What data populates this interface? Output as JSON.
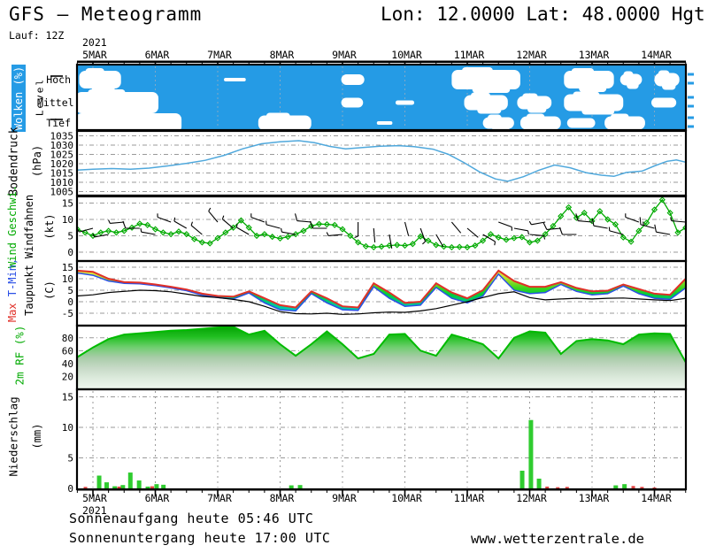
{
  "header": {
    "title": "GFS – Meteogramm",
    "coords": "Lon: 12.0000 Lat: 48.0000 Hgt: 5",
    "run": "Lauf: 12Z"
  },
  "x_axis": {
    "year": "2021",
    "day_labels": [
      "5MAR",
      "6MAR",
      "7MAR",
      "8MAR",
      "9MAR",
      "10MAR",
      "11MAR",
      "12MAR",
      "13MAR",
      "14MAR"
    ],
    "t_start": -0.28,
    "t_end": 9.5
  },
  "footer": {
    "sunrise": "Sonnenaufgang heute 05:46 UTC",
    "sunset": "Sonnenuntergang heute 17:00 UTC",
    "website": "www.wetterzentrale.de"
  },
  "colors": {
    "cloud_bg": "#259BE5",
    "cloud_white": "#FFFFFF",
    "pressure_line": "#4FA8DC",
    "wind_green": "#00AA00",
    "temp_max_red": "#E03028",
    "temp_min_blue": "#2B50E6",
    "dew_black": "#000000",
    "rh_green": "#00BB00",
    "precip_green": "#2FCC2F",
    "precip_red": "#E64545",
    "grid_gray": "#999999"
  },
  "chart_data": {
    "clouds": {
      "type": "heatmap",
      "label": "Wolken (%)",
      "level_label": "Level",
      "levels": [
        {
          "label": "Hoch",
          "segments": [
            [
              -0.22,
              0.45,
              20
            ],
            [
              2.1,
              2.45,
              4
            ],
            [
              3.98,
              4.35,
              12
            ],
            [
              5.75,
              6.85,
              22
            ],
            [
              7.55,
              8.35,
              20
            ],
            [
              8.45,
              8.8,
              13
            ],
            [
              9.0,
              9.4,
              15
            ]
          ]
        },
        {
          "label": "Mittel",
          "segments": [
            [
              -0.28,
              1.05,
              24
            ],
            [
              3.98,
              4.33,
              11
            ],
            [
              4.85,
              5.15,
              5
            ],
            [
              5.95,
              6.65,
              17
            ],
            [
              6.8,
              7.35,
              15
            ],
            [
              7.55,
              8.5,
              19
            ],
            [
              8.95,
              9.35,
              11
            ]
          ]
        },
        {
          "label": "Tief",
          "segments": [
            [
              -0.28,
              1.42,
              22
            ],
            [
              2.65,
              3.5,
              17
            ],
            [
              4.55,
              4.8,
              4
            ],
            [
              6.25,
              6.75,
              13
            ],
            [
              6.85,
              7.5,
              15
            ],
            [
              7.6,
              8.05,
              11
            ],
            [
              8.2,
              8.85,
              15
            ]
          ]
        }
      ]
    },
    "pressure": {
      "type": "line",
      "label": "Bodendruck",
      "unit": "(hPa)",
      "yticks": [
        1035,
        1030,
        1025,
        1020,
        1015,
        1010,
        1005
      ],
      "ylim": [
        1003,
        1037
      ],
      "points": [
        [
          -0.28,
          1016.5
        ],
        [
          0,
          1017
        ],
        [
          0.3,
          1017.4
        ],
        [
          0.6,
          1017
        ],
        [
          0.9,
          1017.6
        ],
        [
          1.2,
          1018.8
        ],
        [
          1.5,
          1020.2
        ],
        [
          1.8,
          1021.8
        ],
        [
          2.1,
          1024.5
        ],
        [
          2.4,
          1028
        ],
        [
          2.7,
          1030.7
        ],
        [
          3.0,
          1031.8
        ],
        [
          3.3,
          1032.4
        ],
        [
          3.55,
          1031.3
        ],
        [
          3.8,
          1029.3
        ],
        [
          4.05,
          1028
        ],
        [
          4.3,
          1028.6
        ],
        [
          4.6,
          1029.4
        ],
        [
          4.9,
          1029.7
        ],
        [
          5.15,
          1029.2
        ],
        [
          5.45,
          1027.8
        ],
        [
          5.7,
          1025
        ],
        [
          5.95,
          1020.5
        ],
        [
          6.2,
          1015.5
        ],
        [
          6.45,
          1011.8
        ],
        [
          6.65,
          1010.5
        ],
        [
          6.9,
          1013
        ],
        [
          7.15,
          1016.5
        ],
        [
          7.4,
          1019.3
        ],
        [
          7.65,
          1017.8
        ],
        [
          7.9,
          1015.2
        ],
        [
          8.15,
          1013.8
        ],
        [
          8.35,
          1013.2
        ],
        [
          8.55,
          1015.3
        ],
        [
          8.8,
          1016
        ],
        [
          9.0,
          1018.8
        ],
        [
          9.2,
          1021.3
        ],
        [
          9.35,
          1022
        ],
        [
          9.5,
          1020.8
        ]
      ]
    },
    "wind": {
      "type": "line",
      "label": "Wind Geschwi.",
      "label2": "Windfahnen",
      "unit": "(kt)",
      "yticks": [
        15,
        10,
        5,
        0
      ],
      "ylim": [
        0,
        17
      ],
      "t0": -0.25,
      "dt": 0.125,
      "speed_kt": [
        7,
        6,
        5,
        6,
        6.5,
        6,
        6.5,
        7.5,
        8.7,
        8.3,
        7,
        6,
        5.5,
        6.3,
        5.5,
        4,
        3,
        2.7,
        4.3,
        6,
        7.5,
        9.7,
        7.5,
        5,
        5.5,
        4.7,
        4.2,
        4.7,
        5.5,
        6.5,
        8,
        8.6,
        8.5,
        8.3,
        7,
        5,
        3,
        1.8,
        1.5,
        1.7,
        2,
        2.2,
        2,
        2.5,
        4.8,
        3.5,
        2.2,
        1.7,
        1.5,
        1.6,
        1.5,
        2,
        3.5,
        5.5,
        4.5,
        3.8,
        4.3,
        4.6,
        3,
        3.5,
        5.5,
        8,
        11,
        13.7,
        10.5,
        12,
        9.5,
        12.5,
        10,
        8.5,
        4.5,
        3.2,
        6.5,
        9,
        13,
        16,
        12,
        6,
        7.5
      ],
      "barbs": {
        "t0": -0.25,
        "dt": 0.25,
        "dirs_deg": [
          250,
          255,
          260,
          265,
          270,
          280,
          290,
          300,
          310,
          320,
          310,
          300,
          290,
          285,
          280,
          275,
          270,
          265,
          180,
          175,
          170,
          165,
          160,
          150,
          140,
          130,
          120,
          110,
          100,
          95,
          260,
          265,
          270,
          275,
          280,
          285,
          290,
          285,
          280,
          275
        ]
      }
    },
    "temp": {
      "type": "line",
      "labels": {
        "min": "T-Min,",
        "max": "Max",
        "dew": "Taupunkt",
        "unit": "(C)"
      },
      "yticks": [
        15,
        10,
        5,
        0,
        -5
      ],
      "ylim": [
        -10,
        17
      ],
      "t0": -0.25,
      "dt": 0.25,
      "tmax_c": [
        13.5,
        13,
        10,
        8.5,
        8.3,
        7.5,
        6.5,
        5.3,
        3.5,
        2.5,
        2.2,
        4.5,
        1.5,
        -1.5,
        -2.5,
        4.5,
        1.5,
        -2,
        -2.5,
        8,
        4,
        -0.5,
        0,
        8,
        4,
        1.5,
        5,
        13.5,
        9,
        6.5,
        6.5,
        8.5,
        6,
        4.5,
        4.8,
        7.5,
        5.5,
        3.5,
        3,
        10
      ],
      "tmin_c": [
        12.5,
        11.5,
        9,
        8,
        7.8,
        7,
        6,
        4.8,
        2.8,
        1.8,
        1.2,
        3.8,
        -0.5,
        -3.5,
        -4,
        3.5,
        -0.5,
        -3.5,
        -3.8,
        6.5,
        1.5,
        -2,
        -1.5,
        6.2,
        1.5,
        -0.5,
        2.5,
        12,
        5,
        3.5,
        4,
        7.5,
        4.5,
        3,
        3.5,
        6.8,
        3.5,
        1.5,
        1,
        6
      ],
      "dewpoint_c": [
        2.5,
        3,
        4,
        4.5,
        5,
        4.8,
        4.3,
        3.3,
        2.3,
        1.8,
        1,
        0,
        -2,
        -4.3,
        -5.2,
        -5.3,
        -5,
        -5.5,
        -5.3,
        -4.8,
        -4.5,
        -4.6,
        -4,
        -3,
        -1.5,
        0,
        1.8,
        3.5,
        4.3,
        1.8,
        0.8,
        1.2,
        1.5,
        1.2,
        1.5,
        1.6,
        1.2,
        0.8,
        0.5,
        1.5
      ]
    },
    "rh": {
      "type": "area",
      "label": "2m RF (%)",
      "yticks": [
        80,
        60,
        40,
        20
      ],
      "ylim": [
        0,
        100
      ],
      "t0": -0.25,
      "dt": 0.25,
      "values_pct": [
        50,
        65,
        78,
        85,
        87,
        89,
        91,
        92,
        94,
        96,
        97,
        85,
        91,
        70,
        52,
        70,
        90,
        70,
        48,
        55,
        85,
        86,
        60,
        52,
        85,
        78,
        70,
        48,
        80,
        90,
        88,
        55,
        75,
        78,
        76,
        70,
        85,
        87,
        86,
        42
      ]
    },
    "precip": {
      "type": "bar",
      "label": "Niederschlag",
      "unit": "(mm)",
      "yticks": [
        15,
        10,
        5,
        0
      ],
      "ylim": [
        0,
        17
      ],
      "bars_green_mm": [
        [
          0.1,
          2.1
        ],
        [
          0.22,
          1.0
        ],
        [
          0.35,
          0.35
        ],
        [
          0.48,
          0.55
        ],
        [
          0.6,
          2.6
        ],
        [
          0.74,
          1.3
        ],
        [
          0.88,
          0.3
        ],
        [
          1.02,
          0.7
        ],
        [
          1.13,
          0.6
        ],
        [
          3.18,
          0.5
        ],
        [
          3.32,
          0.55
        ],
        [
          6.88,
          2.9
        ],
        [
          7.02,
          11.2
        ],
        [
          7.15,
          1.6
        ],
        [
          8.38,
          0.5
        ],
        [
          8.52,
          0.7
        ]
      ],
      "bars_red_mm": [
        [
          -0.12,
          0.25
        ],
        [
          0.42,
          0.3
        ],
        [
          0.95,
          0.35
        ],
        [
          7.28,
          0.3
        ],
        [
          7.45,
          0.2
        ],
        [
          7.6,
          0.25
        ],
        [
          8.66,
          0.4
        ],
        [
          8.8,
          0.25
        ],
        [
          9.0,
          0.15
        ]
      ]
    }
  }
}
